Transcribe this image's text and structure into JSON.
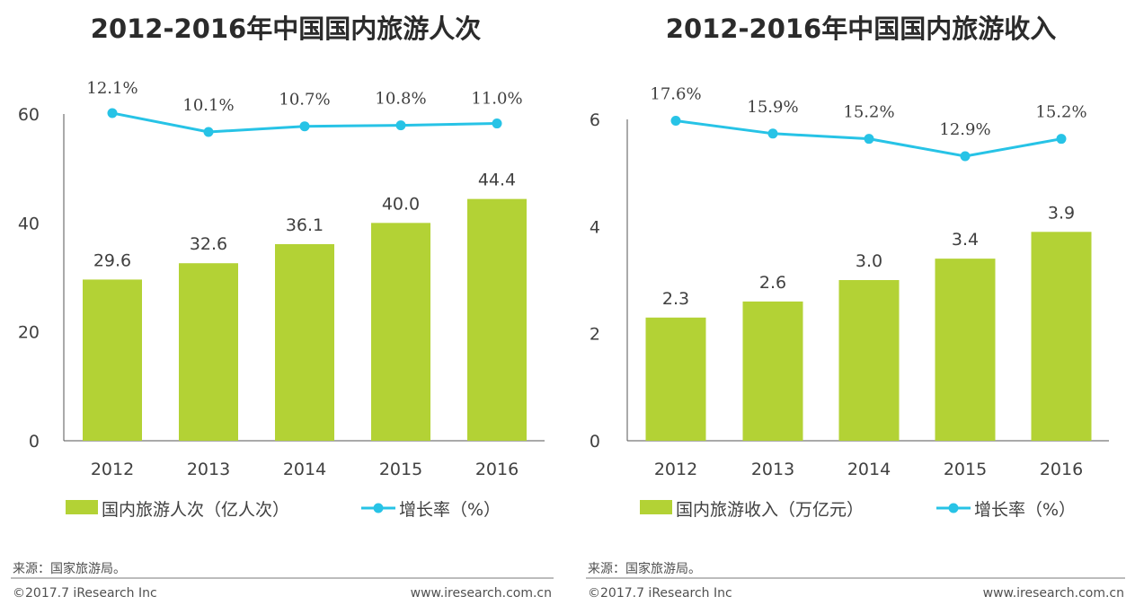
{
  "colors": {
    "bar": "#b3d235",
    "line": "#27c3e6",
    "axis": "#555555",
    "footline": "#7a7a7a"
  },
  "chart_data": [
    {
      "type": "bar",
      "title": "2012-2016年中国国内旅游人次",
      "categories": [
        "2012",
        "2013",
        "2014",
        "2015",
        "2016"
      ],
      "series": [
        {
          "name": "国内旅游人次（亿人次）",
          "type": "bar",
          "values": [
            29.6,
            32.6,
            36.1,
            40.0,
            44.4
          ],
          "labels": [
            "29.6",
            "32.6",
            "36.1",
            "40.0",
            "44.4"
          ]
        },
        {
          "name": "增长率（%）",
          "type": "line",
          "values": [
            12.1,
            10.1,
            10.7,
            10.8,
            11.0
          ],
          "labels": [
            "12.1%",
            "10.1%",
            "10.7%",
            "10.8%",
            "11.0%"
          ]
        }
      ],
      "yticks": [
        "0",
        "20",
        "40",
        "60"
      ],
      "ylim": [
        0,
        60
      ]
    },
    {
      "type": "bar",
      "title": "2012-2016年中国国内旅游收入",
      "categories": [
        "2012",
        "2013",
        "2014",
        "2015",
        "2016"
      ],
      "series": [
        {
          "name": "国内旅游收入（万亿元）",
          "type": "bar",
          "values": [
            2.3,
            2.6,
            3.0,
            3.4,
            3.9
          ],
          "labels": [
            "2.3",
            "2.6",
            "3.0",
            "3.4",
            "3.9"
          ]
        },
        {
          "name": "增长率（%）",
          "type": "line",
          "values": [
            17.6,
            15.9,
            15.2,
            12.9,
            15.2
          ],
          "labels": [
            "17.6%",
            "15.9%",
            "15.2%",
            "12.9%",
            "15.2%"
          ]
        }
      ],
      "yticks": [
        "0",
        "2",
        "4",
        "6"
      ],
      "ylim": [
        0,
        6
      ]
    }
  ],
  "footer": [
    {
      "source": "来源：国家旅游局。",
      "copyright": "©2017.7 iResearch Inc",
      "url": "www.iresearch.com.cn"
    },
    {
      "source": "来源：国家旅游局。",
      "copyright": "©2017.7 iResearch Inc",
      "url": "www.iresearch.com.cn"
    }
  ]
}
